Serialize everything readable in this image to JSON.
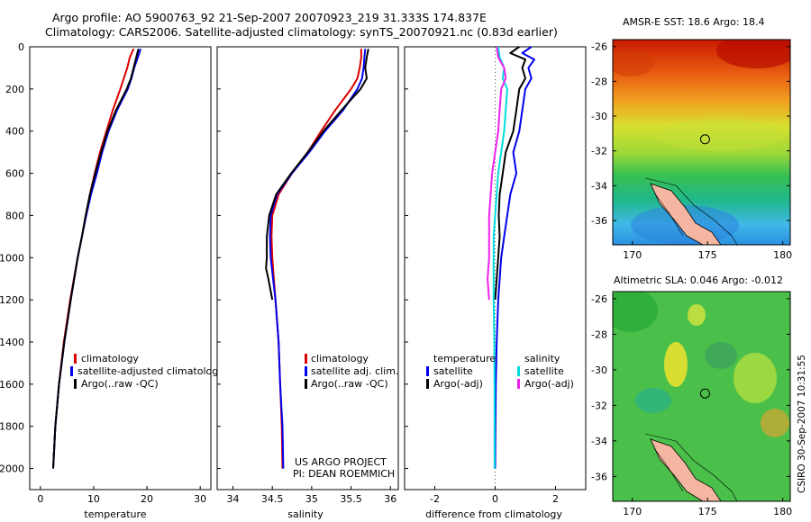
{
  "header": {
    "line1": "Argo profile: AO 5900763_92 21-Sep-2007 20070923_219 31.333S 174.837E",
    "line2": "Climatology: CARS2006. Satellite-adjusted climatology: synTS_20070921.nc (0.83d earlier)"
  },
  "side_label": "CSIRO 30-Sep-2007 10:31:55",
  "chart_data": [
    {
      "id": "temperature",
      "type": "line",
      "xlabel": "temperature",
      "ylabel": "",
      "xlim": [
        -2,
        32
      ],
      "ylim": [
        2100,
        0
      ],
      "xticks": [
        0,
        10,
        20,
        30
      ],
      "yticks": [
        0,
        200,
        400,
        600,
        800,
        1000,
        1200,
        1400,
        1600,
        1800,
        2000
      ],
      "legend": [
        "climatology",
        "satellite-adjusted climatology",
        "Argo(..raw -QC)"
      ],
      "series": [
        {
          "name": "climatology",
          "color": "#dd0000",
          "y": [
            10,
            50,
            100,
            200,
            300,
            400,
            500,
            600,
            700,
            800,
            900,
            1000,
            1200,
            1400,
            1600,
            1800,
            2000
          ],
          "x": [
            17.5,
            16.8,
            16.3,
            15.0,
            13.6,
            12.4,
            11.2,
            10.2,
            9.3,
            8.5,
            7.8,
            7.0,
            5.6,
            4.4,
            3.5,
            2.8,
            2.4
          ]
        },
        {
          "name": "satellite-adjusted climatology",
          "color": "#0000ee",
          "y": [
            10,
            50,
            100,
            150,
            200,
            300,
            400,
            500,
            600,
            700,
            800,
            900,
            1000,
            1200,
            1400,
            1600,
            1800,
            2000
          ],
          "x": [
            18.8,
            18.3,
            17.6,
            17.1,
            16.4,
            14.4,
            12.8,
            11.6,
            10.6,
            9.5,
            8.6,
            7.8,
            7.0,
            5.7,
            4.5,
            3.5,
            2.8,
            2.4
          ]
        },
        {
          "name": "Argo(..raw -QC)",
          "color": "#000000",
          "y": [
            10,
            50,
            100,
            150,
            200,
            300,
            400,
            500,
            600,
            700,
            800,
            900,
            1000,
            1200,
            1400,
            1600,
            1800,
            2000
          ],
          "x": [
            18.4,
            18.0,
            17.5,
            17.0,
            16.2,
            14.2,
            12.6,
            11.4,
            10.3,
            9.3,
            8.5,
            7.8,
            7.0,
            5.7,
            4.5,
            3.5,
            2.8,
            2.4
          ]
        }
      ]
    },
    {
      "id": "salinity",
      "type": "line",
      "xlabel": "salinity",
      "ylabel": "",
      "xlim": [
        33.8,
        36.1
      ],
      "ylim": [
        2100,
        0
      ],
      "xticks": [
        34,
        34.5,
        35,
        35.5,
        36
      ],
      "xticklabels": [
        "34",
        "34.5",
        "35",
        "35.5",
        "36"
      ],
      "legend": [
        "climatology",
        "satellite adj. clim.",
        "Argo(..raw -QC)"
      ],
      "series": [
        {
          "name": "climatology",
          "color": "#dd0000",
          "y": [
            10,
            50,
            100,
            150,
            200,
            300,
            400,
            500,
            600,
            700,
            800,
            900,
            1000,
            1100,
            1200,
            1400,
            1600,
            1800,
            2000
          ],
          "x": [
            35.63,
            35.63,
            35.61,
            35.58,
            35.5,
            35.3,
            35.12,
            34.95,
            34.75,
            34.58,
            34.5,
            34.49,
            34.5,
            34.52,
            34.54,
            34.58,
            34.6,
            34.62,
            34.63
          ]
        },
        {
          "name": "satellite adj. clim.",
          "color": "#0000ee",
          "y": [
            10,
            50,
            100,
            150,
            200,
            300,
            400,
            500,
            600,
            700,
            800,
            900,
            1000,
            1100,
            1200,
            1400,
            1600,
            1800,
            2000
          ],
          "x": [
            35.68,
            35.67,
            35.66,
            35.64,
            35.58,
            35.4,
            35.17,
            34.97,
            34.75,
            34.56,
            34.48,
            34.47,
            34.48,
            34.51,
            34.54,
            34.58,
            34.6,
            34.63,
            34.64
          ]
        },
        {
          "name": "Argo(..raw -QC)",
          "color": "#000000",
          "y": [
            10,
            50,
            100,
            150,
            200,
            300,
            400,
            500,
            600,
            700,
            800,
            900,
            1000,
            1050,
            1100,
            1200
          ],
          "x": [
            35.72,
            35.7,
            35.68,
            35.7,
            35.62,
            35.38,
            35.15,
            34.95,
            34.74,
            34.55,
            34.46,
            34.43,
            34.43,
            34.42,
            34.45,
            34.5
          ]
        }
      ]
    },
    {
      "id": "difference",
      "type": "line",
      "xlabel": "difference from climatology",
      "ylabel": "",
      "xlim": [
        -3,
        3
      ],
      "ylim": [
        2100,
        0
      ],
      "xticks": [
        -2,
        0,
        2
      ],
      "legend_temperature": [
        "temperature",
        "satellite",
        "Argo(-adj)"
      ],
      "legend_salinity": [
        "salinity",
        "satellite",
        "Argo(-adj)"
      ],
      "series": [
        {
          "name": "temperature satellite",
          "color": "#0000ee",
          "y": [
            0,
            30,
            60,
            100,
            150,
            200,
            300,
            400,
            500,
            600,
            700,
            800,
            900,
            1000,
            1200,
            1400,
            1600,
            1800,
            2000
          ],
          "x": [
            1.2,
            0.9,
            1.3,
            1.1,
            1.2,
            1.0,
            0.9,
            0.8,
            0.6,
            0.7,
            0.5,
            0.4,
            0.3,
            0.2,
            0.1,
            0.05,
            0.02,
            0.01,
            0.0
          ]
        },
        {
          "name": "temperature Argo(-adj)",
          "color": "#000000",
          "y": [
            0,
            30,
            60,
            100,
            150,
            200,
            300,
            400,
            500,
            600,
            700,
            800,
            900,
            1000,
            1100,
            1200
          ],
          "x": [
            0.8,
            0.5,
            1.0,
            0.9,
            1.0,
            0.8,
            0.7,
            0.6,
            0.35,
            0.25,
            0.15,
            0.12,
            0.15,
            0.1,
            0.05,
            0.0
          ]
        },
        {
          "name": "salinity satellite",
          "color": "#00dddd",
          "y": [
            0,
            50,
            100,
            150,
            200,
            300,
            400,
            500,
            600,
            700,
            800,
            900,
            1000,
            1200,
            1400,
            1600,
            1800,
            2000
          ],
          "x": [
            0.1,
            0.15,
            0.3,
            0.25,
            0.4,
            0.35,
            0.3,
            0.2,
            0.1,
            0.05,
            0.0,
            -0.05,
            -0.05,
            -0.05,
            -0.03,
            -0.02,
            -0.02,
            -0.02
          ]
        },
        {
          "name": "salinity Argo(-adj)",
          "color": "#ee22ee",
          "y": [
            0,
            50,
            100,
            150,
            200,
            300,
            400,
            500,
            600,
            700,
            800,
            900,
            1000,
            1100,
            1200
          ],
          "x": [
            0.05,
            0.1,
            0.3,
            0.35,
            0.2,
            0.15,
            0.1,
            0.0,
            -0.1,
            -0.15,
            -0.2,
            -0.2,
            -0.2,
            -0.25,
            -0.2
          ]
        }
      ]
    },
    {
      "id": "amsre-sst",
      "type": "heatmap",
      "title": "AMSR-E SST: 18.6  Argo: 18.4",
      "xlim": [
        168.7,
        180.5
      ],
      "ylim": [
        -37.4,
        -25.6
      ],
      "xticks": [
        170,
        175,
        180
      ],
      "yticks": [
        -26,
        -28,
        -30,
        -32,
        -34,
        -36
      ],
      "marker": {
        "lon": 174.837,
        "lat": -31.333
      }
    },
    {
      "id": "altimetric-sla",
      "type": "heatmap",
      "title": "Altimetric SLA: 0.046  Argo: -0.012",
      "xlim": [
        168.7,
        180.5
      ],
      "ylim": [
        -37.4,
        -25.6
      ],
      "xticks": [
        170,
        175,
        180
      ],
      "yticks": [
        -26,
        -28,
        -30,
        -32,
        -34,
        -36
      ],
      "marker": {
        "lon": 174.837,
        "lat": -31.333
      }
    }
  ],
  "footer": {
    "project_line1": "US ARGO PROJECT",
    "project_line2": "PI: DEAN ROEMMICH"
  }
}
